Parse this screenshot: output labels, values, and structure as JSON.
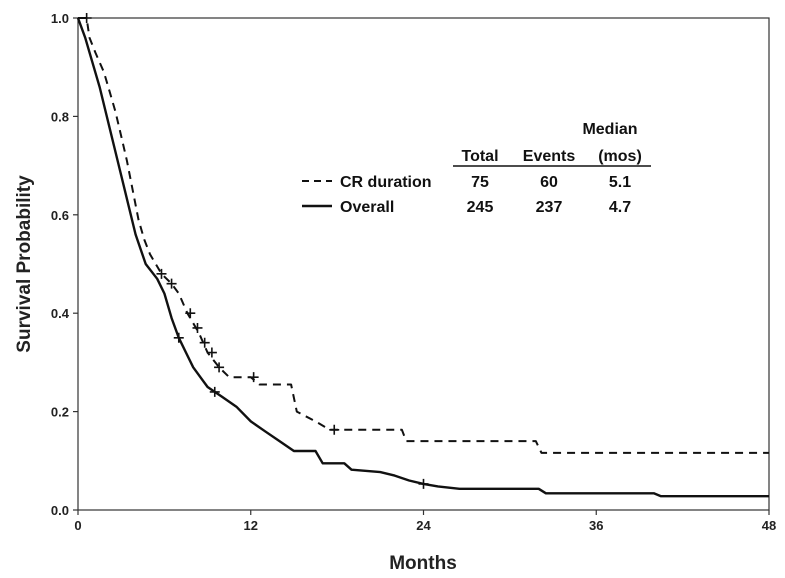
{
  "chart_data": {
    "type": "line",
    "xlabel": "Months",
    "ylabel": "Survival Probability",
    "xlim": [
      0,
      48
    ],
    "ylim": [
      0,
      1.0
    ],
    "x_ticks": [
      "0",
      "12",
      "24",
      "36",
      "48"
    ],
    "y_ticks": [
      "0.0",
      "0.2",
      "0.4",
      "0.6",
      "0.8",
      "1.0"
    ],
    "grid": false,
    "legend": {
      "placement": "top-right",
      "header_top": "Median",
      "columns": [
        "Total",
        "Events",
        "(mos)"
      ],
      "rows": [
        {
          "name": "CR duration",
          "style": "dashed",
          "total": "75",
          "events": "60",
          "median": "5.1"
        },
        {
          "name": "Overall",
          "style": "solid",
          "total": "245",
          "events": "237",
          "median": "4.7"
        }
      ]
    },
    "series": [
      {
        "name": "CR duration",
        "style": "dashed",
        "points": [
          [
            0,
            1.0
          ],
          [
            0.6,
            1.0
          ],
          [
            0.8,
            0.96
          ],
          [
            1.2,
            0.93
          ],
          [
            1.8,
            0.89
          ],
          [
            2.2,
            0.85
          ],
          [
            2.6,
            0.81
          ],
          [
            3.0,
            0.76
          ],
          [
            3.4,
            0.71
          ],
          [
            3.8,
            0.65
          ],
          [
            4.2,
            0.59
          ],
          [
            4.6,
            0.55
          ],
          [
            5.0,
            0.52
          ],
          [
            5.8,
            0.48
          ],
          [
            6.5,
            0.46
          ],
          [
            7.0,
            0.44
          ],
          [
            7.6,
            0.4
          ],
          [
            8.4,
            0.36
          ],
          [
            9.0,
            0.32
          ],
          [
            9.8,
            0.29
          ],
          [
            10.5,
            0.27
          ],
          [
            12.0,
            0.27
          ],
          [
            12.6,
            0.255
          ],
          [
            14.8,
            0.255
          ],
          [
            15.2,
            0.2
          ],
          [
            16.5,
            0.18
          ],
          [
            17.5,
            0.163
          ],
          [
            22.5,
            0.163
          ],
          [
            22.8,
            0.14
          ],
          [
            31.8,
            0.14
          ],
          [
            32.2,
            0.116
          ],
          [
            48.0,
            0.116
          ]
        ],
        "censored": [
          [
            0.6,
            1.0
          ],
          [
            5.8,
            0.48
          ],
          [
            6.5,
            0.46
          ],
          [
            7.8,
            0.4
          ],
          [
            8.3,
            0.37
          ],
          [
            8.8,
            0.34
          ],
          [
            9.3,
            0.32
          ],
          [
            9.8,
            0.29
          ],
          [
            12.2,
            0.27
          ],
          [
            17.8,
            0.163
          ]
        ]
      },
      {
        "name": "Overall",
        "style": "solid",
        "points": [
          [
            0,
            1.0
          ],
          [
            0.5,
            0.96
          ],
          [
            1.0,
            0.91
          ],
          [
            1.5,
            0.86
          ],
          [
            2.0,
            0.8
          ],
          [
            2.5,
            0.74
          ],
          [
            3.0,
            0.68
          ],
          [
            3.5,
            0.62
          ],
          [
            4.0,
            0.56
          ],
          [
            4.7,
            0.5
          ],
          [
            5.5,
            0.47
          ],
          [
            6.0,
            0.44
          ],
          [
            6.5,
            0.39
          ],
          [
            7.0,
            0.35
          ],
          [
            7.5,
            0.32
          ],
          [
            8.0,
            0.29
          ],
          [
            8.5,
            0.27
          ],
          [
            9.0,
            0.25
          ],
          [
            10.0,
            0.23
          ],
          [
            11.0,
            0.21
          ],
          [
            12.0,
            0.18
          ],
          [
            13.0,
            0.16
          ],
          [
            14.0,
            0.14
          ],
          [
            15.0,
            0.12
          ],
          [
            16.5,
            0.12
          ],
          [
            17.0,
            0.095
          ],
          [
            18.5,
            0.095
          ],
          [
            19.0,
            0.082
          ],
          [
            21.0,
            0.077
          ],
          [
            22.0,
            0.07
          ],
          [
            23.0,
            0.06
          ],
          [
            24.0,
            0.053
          ],
          [
            25.0,
            0.048
          ],
          [
            26.5,
            0.043
          ],
          [
            32.0,
            0.043
          ],
          [
            32.5,
            0.034
          ],
          [
            40.0,
            0.034
          ],
          [
            40.5,
            0.028
          ],
          [
            48.0,
            0.028
          ]
        ],
        "censored": [
          [
            7.0,
            0.35
          ],
          [
            9.5,
            0.24
          ],
          [
            24.0,
            0.053
          ]
        ]
      }
    ]
  }
}
